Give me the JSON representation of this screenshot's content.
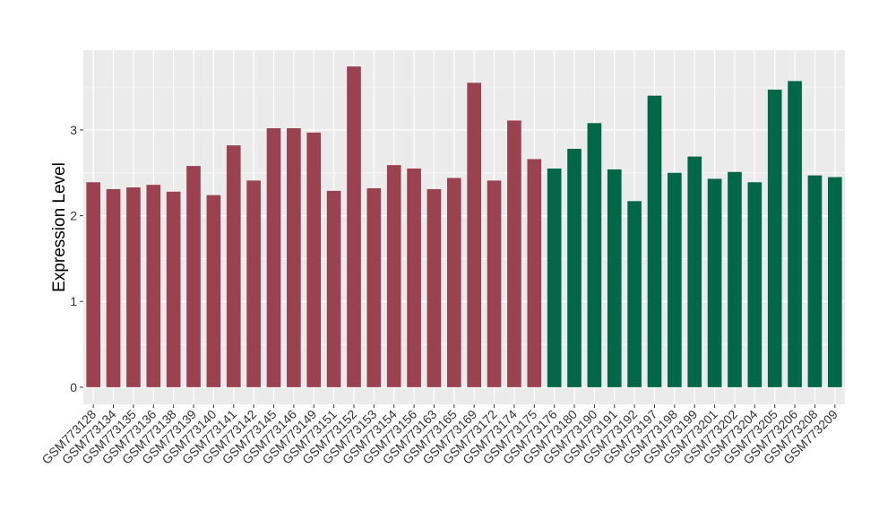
{
  "chart_data": {
    "type": "bar",
    "title": "",
    "xlabel": "",
    "ylabel": "Expression Level",
    "ylim": [
      -0.2,
      3.93
    ],
    "yticks": [
      0,
      1,
      2,
      3
    ],
    "grid": true,
    "background_color": "#EBEBEB",
    "grid_color": "#FFFFFF",
    "group_colors": [
      "#9B4250",
      "#006846"
    ],
    "categories": [
      "GSM773128",
      "GSM773134",
      "GSM773135",
      "GSM773136",
      "GSM773138",
      "GSM773139",
      "GSM773140",
      "GSM773141",
      "GSM773142",
      "GSM773145",
      "GSM773146",
      "GSM773149",
      "GSM773151",
      "GSM773152",
      "GSM773153",
      "GSM773154",
      "GSM773156",
      "GSM773163",
      "GSM773165",
      "GSM773169",
      "GSM773172",
      "GSM773174",
      "GSM773175",
      "GSM773176",
      "GSM773180",
      "GSM773190",
      "GSM773191",
      "GSM773192",
      "GSM773197",
      "GSM773198",
      "GSM773199",
      "GSM773201",
      "GSM773202",
      "GSM773204",
      "GSM773205",
      "GSM773206",
      "GSM773208",
      "GSM773209"
    ],
    "values": [
      2.39,
      2.31,
      2.33,
      2.36,
      2.28,
      2.58,
      2.24,
      2.82,
      2.41,
      3.02,
      3.02,
      2.97,
      2.29,
      3.74,
      2.32,
      2.59,
      2.55,
      2.31,
      2.44,
      3.55,
      2.41,
      3.11,
      2.66,
      2.55,
      2.78,
      3.08,
      2.54,
      2.17,
      3.4,
      2.5,
      2.69,
      2.43,
      2.51,
      2.39,
      3.47,
      3.57,
      2.47,
      2.45
    ],
    "groups": [
      0,
      0,
      0,
      0,
      0,
      0,
      0,
      0,
      0,
      0,
      0,
      0,
      0,
      0,
      0,
      0,
      0,
      0,
      0,
      0,
      0,
      0,
      0,
      1,
      1,
      1,
      1,
      1,
      1,
      1,
      1,
      1,
      1,
      1,
      1,
      1,
      1,
      1
    ]
  }
}
